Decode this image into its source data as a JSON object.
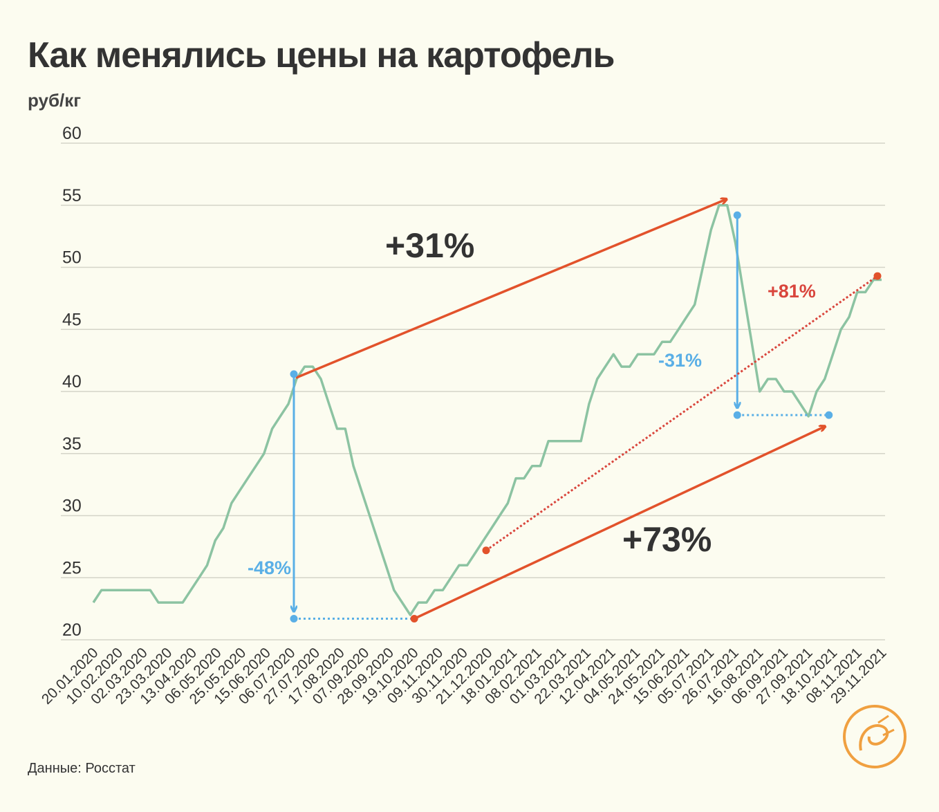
{
  "title": "Как менялись цены на картофель",
  "unit_label": "руб/кг",
  "source": "Данные: Росстат",
  "colors": {
    "line": "#8cc3a2",
    "up": "#e2522b",
    "down": "#5aafe6",
    "total": "#d9453c",
    "grid": "#d4d4c8",
    "text": "#333333"
  },
  "chart_data": {
    "type": "line",
    "title": "Как менялись цены на картофель",
    "ylabel": "руб/кг",
    "xlabel": "",
    "ylim": [
      20,
      60
    ],
    "yticks": [
      20,
      25,
      30,
      35,
      40,
      45,
      50,
      55,
      60
    ],
    "grid": true,
    "xtick_labels": [
      "20.01.2020",
      "10.02.2020",
      "02.03.2020",
      "23.03.2020",
      "13.04.2020",
      "06.05.2020",
      "25.05.2020",
      "15.06.2020",
      "06.07.2020",
      "27.07.2020",
      "17.08.2020",
      "07.09.2020",
      "28.09.2020",
      "19.10.2020",
      "09.11.2020",
      "30.11.2020",
      "21.12.2020",
      "18.01.2021",
      "08.02.2021",
      "01.03.2021",
      "22.03.2021",
      "12.04.2021",
      "04.05.2021",
      "24.05.2021",
      "15.06.2021",
      "05.07.2021",
      "26.07.2021",
      "16.08.2021",
      "06.09.2021",
      "27.09.2021",
      "18.10.2021",
      "08.11.2021",
      "29.11.2021"
    ],
    "series": [
      {
        "values": [
          23,
          24,
          24,
          24,
          24,
          24,
          24,
          24,
          23,
          23,
          23,
          23,
          24,
          25,
          26,
          28,
          29,
          31,
          32,
          33,
          34,
          35,
          37,
          38,
          39,
          41,
          42,
          42,
          41,
          39,
          37,
          37,
          34,
          32,
          30,
          28,
          26,
          24,
          23,
          22,
          23,
          23,
          24,
          24,
          25,
          26,
          26,
          27,
          28,
          29,
          30,
          31,
          33,
          33,
          34,
          34,
          36,
          36,
          36,
          36,
          36,
          39,
          41,
          42,
          43,
          42,
          42,
          43,
          43,
          43,
          44,
          44,
          45,
          46,
          47,
          50,
          53,
          55,
          55,
          52,
          48,
          44,
          40,
          41,
          41,
          40,
          40,
          39,
          38,
          40,
          41,
          43,
          45,
          46,
          48,
          48,
          49,
          49
        ]
      }
    ],
    "annotations": [
      {
        "type": "arrow-up",
        "text": "+31%",
        "from": "06.07.2020",
        "to": "26.07.2021"
      },
      {
        "type": "arrow-down",
        "text": "-48%",
        "at": "06.07.2020",
        "from_value": 41.4,
        "to_value": 21.7
      },
      {
        "type": "arrow-up",
        "text": "+73%",
        "from": "19.10.2020",
        "to": "18.10.2021"
      },
      {
        "type": "arrow-down",
        "text": "-31%",
        "at": "26.07.2021",
        "from_value": 54.2,
        "to_value": 38.1
      },
      {
        "type": "dotted-trend",
        "text": "+81%",
        "from": "21.12.2020",
        "to": "29.11.2021"
      }
    ]
  }
}
